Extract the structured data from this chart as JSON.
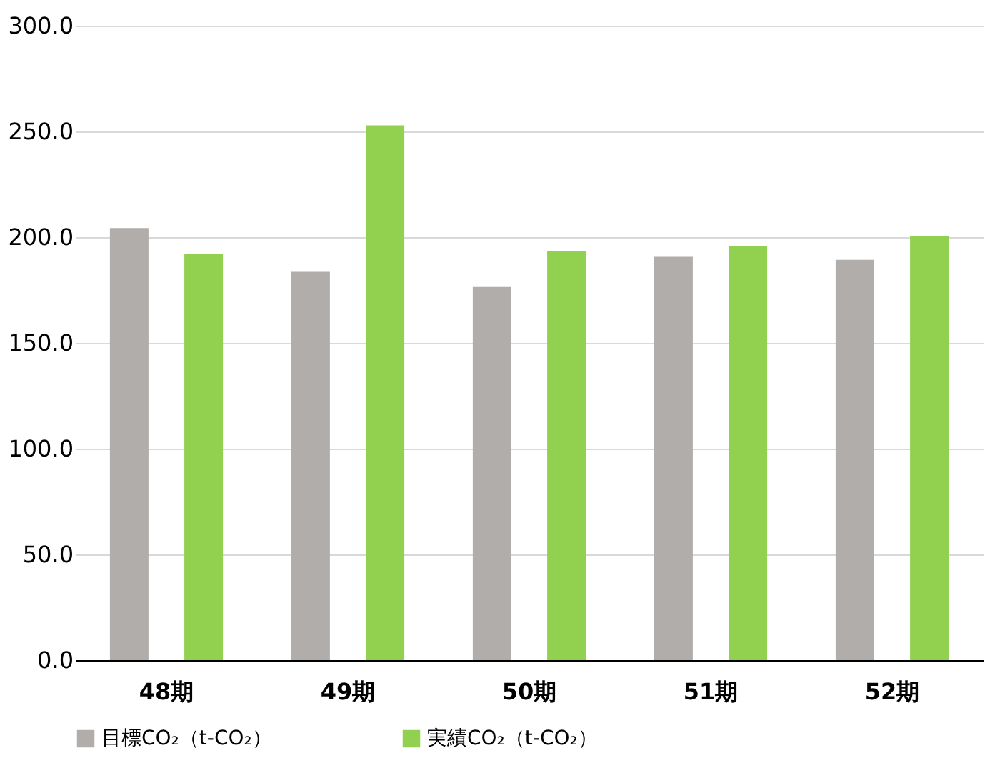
{
  "chart_data": {
    "type": "bar",
    "categories": [
      "48期",
      "49期",
      "50期",
      "51期",
      "52期"
    ],
    "series": [
      {
        "name": "目標CO₂（t-CO₂）",
        "color": "#b0adab",
        "values": [
          204.3,
          183.6,
          176.4,
          190.7,
          189.3
        ]
      },
      {
        "name": "実績CO₂（t-CO₂）",
        "color": "#92d050",
        "values": [
          192.1,
          252.9,
          193.6,
          195.7,
          200.7
        ]
      }
    ],
    "ylim": [
      0,
      300
    ],
    "yticks": [
      {
        "value": 0,
        "label": "0.0"
      },
      {
        "value": 50,
        "label": "50.0"
      },
      {
        "value": 100,
        "label": "100.0"
      },
      {
        "value": 150,
        "label": "150.0"
      },
      {
        "value": 200,
        "label": "200.0"
      },
      {
        "value": 250,
        "label": "250.0"
      },
      {
        "value": 300,
        "label": "300.0"
      }
    ],
    "grid": "y",
    "legend": "bottom"
  }
}
